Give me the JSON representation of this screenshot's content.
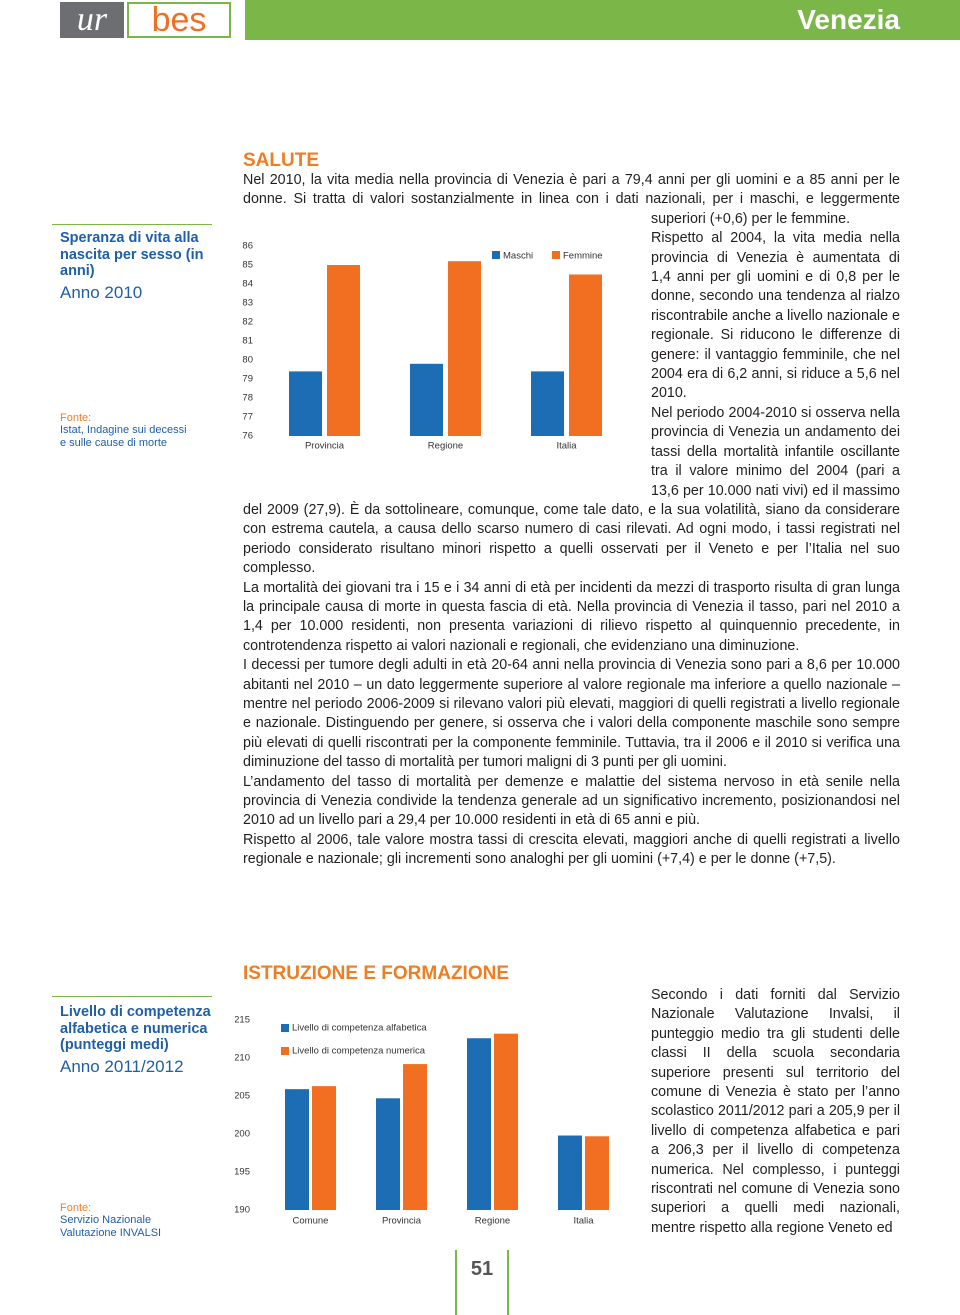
{
  "header": {
    "logo_left": "ur",
    "logo_right": "bes",
    "title": "Venezia"
  },
  "salute": {
    "title": "SALUTE",
    "paragraphs": [
      "Nel 2010, la vita media nella provincia di Venezia è pari a 79,4 anni per gli uomini e a 85 anni per le donne. Si tratta di valori sostanzialmente in linea con i dati nazionali, per i maschi, e leggermente superiori (+0,6) per le femmine.",
      "Rispetto al 2004, la vita media nella provincia di Venezia è aumentata di 1,4 anni per gli uomini e di 0,8 per le donne, secondo una tendenza al rialzo riscontrabile anche a livello nazionale e regionale. Si riducono le differenze di genere: il vantaggio femminile, che nel 2004 era di 6,2 anni, si riduce a 5,6 nel 2010.",
      "Nel periodo 2004-2010 si osserva nella provincia di Venezia un andamento dei tassi della mortalità infantile oscillante tra il valore minimo del 2004 (pari a 13,6 per 10.000 nati vivi) ed il massimo del 2009 (27,9). È da sottolineare, comunque, come tale dato, e la sua volatilità, siano da considerare con estrema cautela, a causa dello scarso numero di casi rilevati. Ad ogni modo, i tassi registrati nel periodo considerato risultano minori rispetto a quelli osservati per il Veneto e per l’Italia nel suo complesso.",
      "La mortalità dei giovani tra i 15 e i 34 anni di età per incidenti da mezzi di trasporto risulta di gran lunga la principale causa di morte in questa fascia di età. Nella provincia di Venezia il tasso, pari nel 2010 a 1,4 per 10.000 residenti, non presenta variazioni di rilievo rispetto al quinquennio precedente, in controtendenza rispetto ai valori nazionali e regionali, che evidenziano una diminuzione.",
      "I decessi per tumore degli adulti in età 20-64 anni nella provincia di Venezia sono pari a 8,6 per 10.000 abitanti nel 2010 – un dato leggermente superiore al valore regionale ma inferiore a quello nazionale – mentre nel periodo 2006-2009 si rilevano valori più elevati, maggiori di quelli registrati a livello regionale e nazionale. Distinguendo per genere, si osserva che i valori della componente maschile sono sempre più elevati di quelli riscontrati per la componente femminile. Tuttavia, tra il 2006 e il 2010 si verifica una diminuzione del tasso di mortalità per tumori maligni di 3 punti per gli uomini.",
      "L’andamento del tasso di mortalità per demenze e malattie del sistema nervoso in età senile nella provincia di Venezia condivide la tendenza generale ad un significativo incremento, posizionandosi nel 2010 ad un livello pari a 29,4 per 10.000 residenti in età di 65 anni e più.",
      "Rispetto al 2006, tale valore mostra tassi di crescita elevati, maggiori anche di quelli registrati a livello regionale e nazionale; gli incrementi sono analoghi per gli uomini (+7,4) e per le donne (+7,5)."
    ]
  },
  "istruzione": {
    "title": "ISTRUZIONE E FORMAZIONE",
    "paragraphs": [
      "Secondo i dati forniti dal Servizio Nazionale Valutazione Invalsi, il punteggio medio tra gli studenti delle classi II della scuola secondaria superiore presenti sul territorio del comune di Venezia è stato per l’anno scolastico 2011/2012 pari a 205,9 per il livello di competenza alfabetica e pari a 206,3 per il livello di competenza numerica. Nel complesso, i punteggi riscontrati nel comune di Venezia sono superiori a quelli medi nazionali, mentre rispetto alla regione Veneto ed"
    ]
  },
  "page_number": "51",
  "chart_data": [
    {
      "type": "bar",
      "title": "Speranza di vita alla nascita per sesso (in anni)",
      "subtitle": "Anno 2010",
      "source_label": "Fonte:",
      "source": "Istat, Indagine sui decessi e sulle cause di morte",
      "categories": [
        "Provincia",
        "Regione",
        "Italia"
      ],
      "series": [
        {
          "name": "Maschi",
          "color": "#1d6db5",
          "values": [
            79.4,
            79.8,
            79.4
          ]
        },
        {
          "name": "Femmine",
          "color": "#f26f21",
          "values": [
            85.0,
            85.2,
            84.5
          ]
        }
      ],
      "ylim": [
        76,
        86
      ],
      "yticks": [
        76,
        77,
        78,
        79,
        80,
        81,
        82,
        83,
        84,
        85,
        86
      ],
      "grid": false,
      "legend": "top-right"
    },
    {
      "type": "bar",
      "title": "Livello di competenza alfabetica e numerica (punteggi medi)",
      "subtitle": "Anno 2011/2012",
      "source_label": "Fonte:",
      "source": "Servizio Nazionale Valutazione INVALSI",
      "categories": [
        "Comune",
        "Provincia",
        "Regione",
        "Italia"
      ],
      "series": [
        {
          "name": "Livello di competenza alfabetica",
          "color": "#1d6db5",
          "values": [
            205.9,
            204.7,
            212.6,
            199.8
          ]
        },
        {
          "name": "Livello di competenza numerica",
          "color": "#f26f21",
          "values": [
            206.3,
            209.2,
            213.2,
            199.7
          ]
        }
      ],
      "ylim": [
        190,
        215
      ],
      "yticks": [
        190,
        195,
        200,
        205,
        210,
        215
      ],
      "grid": false,
      "legend": "top-left"
    }
  ]
}
